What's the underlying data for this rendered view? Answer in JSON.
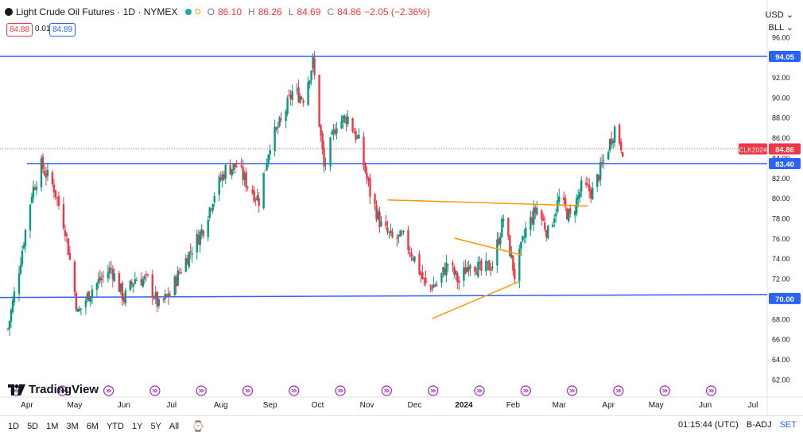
{
  "header": {
    "title": "Light Crude Oil Futures · 1D · NYMEX",
    "open_label": "O",
    "open": "86.10",
    "high_label": "H",
    "high": "86.26",
    "low_label": "L",
    "low": "84.69",
    "close_label": "C",
    "close": "84.86",
    "change": "−2.05 (−2.36%)",
    "d_badge": "D",
    "bid": "84.88",
    "spread": "0.01",
    "ask": "84.89"
  },
  "axis_top": {
    "currency": "USD",
    "unit": "BLL"
  },
  "price_tags": [
    {
      "text": "94.05",
      "value": 94.05,
      "color": "#2962ff"
    },
    {
      "text": "84.86",
      "value": 84.86,
      "color": "#f23645"
    },
    {
      "text": "83.40",
      "value": 83.4,
      "color": "#2962ff"
    },
    {
      "text": "70.00",
      "value": 70.0,
      "color": "#2962ff"
    }
  ],
  "symbol_tag": "CLK2024",
  "logo_text": "TradingView",
  "timeframes": [
    "1D",
    "5D",
    "1M",
    "3M",
    "6M",
    "YTD",
    "1Y",
    "5Y",
    "All"
  ],
  "footer": {
    "time": "01:15:44 (UTC)",
    "adj": "B-ADJ",
    "set": "SET"
  },
  "colors": {
    "up": "#089981",
    "down": "#f23645",
    "hline": "#2962ff",
    "trend": "#ff9800"
  },
  "chart_data": {
    "type": "candlestick",
    "y_ticks": [
      62,
      64,
      66,
      68,
      70,
      72,
      74,
      76,
      78,
      80,
      82,
      84,
      86,
      88,
      90,
      92,
      94,
      96
    ],
    "ylim": [
      61,
      96.5
    ],
    "x_ticks": [
      "Apr",
      "May",
      "Jun",
      "Jul",
      "Aug",
      "Sep",
      "Oct",
      "Nov",
      "Dec",
      "2024",
      "Feb",
      "Mar",
      "Apr",
      "May",
      "Jun",
      "Jul"
    ],
    "horizontal_levels": [
      94.05,
      83.4,
      70.0
    ],
    "close_path": [
      [
        "2023-03-20",
        67
      ],
      [
        "2023-03-27",
        73
      ],
      [
        "2023-04-04",
        80.5
      ],
      [
        "2023-04-10",
        83.2
      ],
      [
        "2023-04-18",
        81
      ],
      [
        "2023-04-25",
        77
      ],
      [
        "2023-05-03",
        68.5
      ],
      [
        "2023-05-12",
        71
      ],
      [
        "2023-05-24",
        73
      ],
      [
        "2023-06-01",
        70
      ],
      [
        "2023-06-08",
        72
      ],
      [
        "2023-06-16",
        71.8
      ],
      [
        "2023-06-23",
        69.2
      ],
      [
        "2023-06-30",
        70.5
      ],
      [
        "2023-07-07",
        73
      ],
      [
        "2023-07-14",
        75
      ],
      [
        "2023-07-21",
        77
      ],
      [
        "2023-07-28",
        80.5
      ],
      [
        "2023-08-04",
        82.8
      ],
      [
        "2023-08-11",
        83.2
      ],
      [
        "2023-08-18",
        81.3
      ],
      [
        "2023-08-25",
        79.8
      ],
      [
        "2023-09-01",
        85.5
      ],
      [
        "2023-09-08",
        87.5
      ],
      [
        "2023-09-15",
        90.5
      ],
      [
        "2023-09-22",
        90
      ],
      [
        "2023-09-28",
        93.5
      ],
      [
        "2023-10-05",
        83
      ],
      [
        "2023-10-13",
        87.5
      ],
      [
        "2023-10-20",
        88
      ],
      [
        "2023-10-27",
        85.5
      ],
      [
        "2023-11-03",
        80.5
      ],
      [
        "2023-11-10",
        77.2
      ],
      [
        "2023-11-17",
        75.9
      ],
      [
        "2023-11-24",
        76
      ],
      [
        "2023-12-01",
        74
      ],
      [
        "2023-12-08",
        71.2
      ],
      [
        "2023-12-15",
        71.4
      ],
      [
        "2023-12-22",
        73.5
      ],
      [
        "2023-12-29",
        71.6
      ],
      [
        "2024-01-05",
        73.8
      ],
      [
        "2024-01-12",
        72.7
      ],
      [
        "2024-01-19",
        73.4
      ],
      [
        "2024-01-26",
        78
      ],
      [
        "2024-02-02",
        72.3
      ],
      [
        "2024-02-09",
        76.8
      ],
      [
        "2024-02-16",
        79
      ],
      [
        "2024-02-23",
        76.5
      ],
      [
        "2024-03-01",
        79.9
      ],
      [
        "2024-03-08",
        78
      ],
      [
        "2024-03-15",
        81
      ],
      [
        "2024-03-22",
        80.6
      ],
      [
        "2024-03-28",
        83.2
      ],
      [
        "2024-04-05",
        86.9
      ],
      [
        "2024-04-10",
        84.86
      ]
    ],
    "trendlines": [
      {
        "from": [
          "2023-11-14",
          79.8
        ],
        "to": [
          "2024-03-19",
          79.2
        ]
      },
      {
        "from": [
          "2023-12-12",
          68.0
        ],
        "to": [
          "2024-02-05",
          71.7
        ]
      },
      {
        "from": [
          "2023-12-26",
          76.0
        ],
        "to": [
          "2024-02-07",
          74.3
        ]
      }
    ]
  }
}
